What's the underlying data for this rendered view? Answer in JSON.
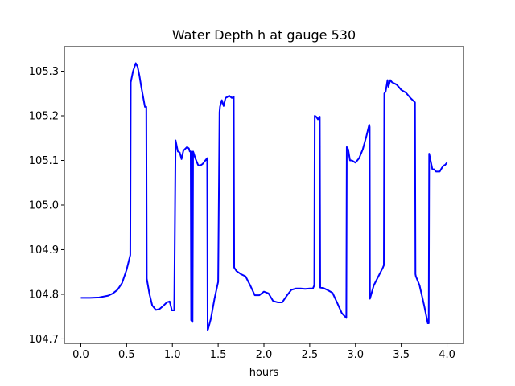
{
  "chart_data": {
    "type": "line",
    "title": "Water Depth h at gauge 530",
    "xlabel": "hours",
    "ylabel": "",
    "xlim": [
      -0.18,
      4.18
    ],
    "ylim": [
      104.69,
      105.355
    ],
    "xticks": [
      0.0,
      0.5,
      1.0,
      1.5,
      2.0,
      2.5,
      3.0,
      3.5,
      4.0
    ],
    "xtick_labels": [
      "0.0",
      "0.5",
      "1.0",
      "1.5",
      "2.0",
      "2.5",
      "3.0",
      "3.5",
      "4.0"
    ],
    "yticks": [
      104.7,
      104.8,
      104.9,
      105.0,
      105.1,
      105.2,
      105.3
    ],
    "ytick_labels": [
      "104.7",
      "104.8",
      "104.9",
      "105.0",
      "105.1",
      "105.2",
      "105.3"
    ],
    "grid": false,
    "series": [
      {
        "color": "#0000ff",
        "x": [
          0.0,
          0.1,
          0.2,
          0.3,
          0.35,
          0.4,
          0.45,
          0.5,
          0.54,
          0.545,
          0.57,
          0.6,
          0.62,
          0.64,
          0.66,
          0.7,
          0.715,
          0.72,
          0.75,
          0.78,
          0.82,
          0.86,
          0.9,
          0.94,
          0.97,
          0.995,
          1.02,
          1.035,
          1.04,
          1.06,
          1.08,
          1.1,
          1.12,
          1.14,
          1.16,
          1.18,
          1.19,
          1.2,
          1.205,
          1.22,
          1.226,
          1.23,
          1.25,
          1.28,
          1.3,
          1.33,
          1.36,
          1.38,
          1.385,
          1.39,
          1.42,
          1.46,
          1.5,
          1.515,
          1.52,
          1.54,
          1.56,
          1.58,
          1.6,
          1.62,
          1.65,
          1.67,
          1.675,
          1.7,
          1.75,
          1.8,
          1.85,
          1.9,
          1.95,
          2.0,
          2.05,
          2.1,
          2.15,
          2.2,
          2.25,
          2.3,
          2.35,
          2.4,
          2.45,
          2.5,
          2.535,
          2.55,
          2.555,
          2.57,
          2.59,
          2.61,
          2.615,
          2.65,
          2.7,
          2.75,
          2.8,
          2.85,
          2.9,
          2.905,
          2.92,
          2.94,
          2.96,
          3.0,
          3.04,
          3.08,
          3.12,
          3.15,
          3.155,
          3.158,
          3.2,
          3.25,
          3.3,
          3.31,
          3.315,
          3.33,
          3.35,
          3.36,
          3.38,
          3.4,
          3.45,
          3.5,
          3.55,
          3.6,
          3.65,
          3.655,
          3.66,
          3.7,
          3.75,
          3.79,
          3.8,
          3.805,
          3.82,
          3.84,
          3.86,
          3.88,
          3.9,
          3.92,
          3.94,
          3.96,
          3.98,
          4.0
        ],
        "y": [
          104.792,
          104.792,
          104.793,
          104.797,
          104.802,
          104.81,
          104.825,
          104.855,
          104.888,
          105.275,
          105.3,
          105.318,
          105.31,
          105.29,
          105.265,
          105.22,
          105.22,
          104.835,
          104.8,
          104.775,
          104.765,
          104.767,
          104.774,
          104.782,
          104.784,
          104.764,
          104.764,
          105.145,
          105.14,
          105.12,
          105.118,
          105.103,
          105.122,
          105.126,
          105.13,
          105.127,
          105.12,
          105.12,
          104.742,
          104.738,
          105.12,
          105.118,
          105.105,
          105.09,
          105.088,
          105.092,
          105.1,
          105.105,
          104.72,
          104.722,
          104.745,
          104.79,
          104.828,
          105.208,
          105.22,
          105.235,
          105.222,
          105.24,
          105.242,
          105.245,
          105.24,
          105.243,
          104.86,
          104.852,
          104.845,
          104.84,
          104.82,
          104.798,
          104.798,
          104.806,
          104.802,
          104.785,
          104.782,
          104.782,
          104.797,
          104.81,
          104.813,
          104.813,
          104.812,
          104.813,
          104.813,
          104.82,
          105.2,
          105.198,
          105.192,
          105.198,
          104.815,
          104.814,
          104.809,
          104.803,
          104.781,
          104.758,
          104.747,
          105.13,
          105.125,
          105.1,
          105.1,
          105.095,
          105.105,
          105.125,
          105.155,
          105.18,
          105.175,
          104.79,
          104.82,
          104.84,
          104.86,
          104.865,
          105.25,
          105.255,
          105.28,
          105.265,
          105.28,
          105.275,
          105.27,
          105.258,
          105.252,
          105.24,
          105.23,
          104.845,
          104.84,
          104.82,
          104.775,
          104.735,
          104.735,
          105.115,
          105.1,
          105.08,
          105.08,
          105.075,
          105.075,
          105.075,
          105.082,
          105.088,
          105.09,
          105.095
        ]
      }
    ]
  }
}
